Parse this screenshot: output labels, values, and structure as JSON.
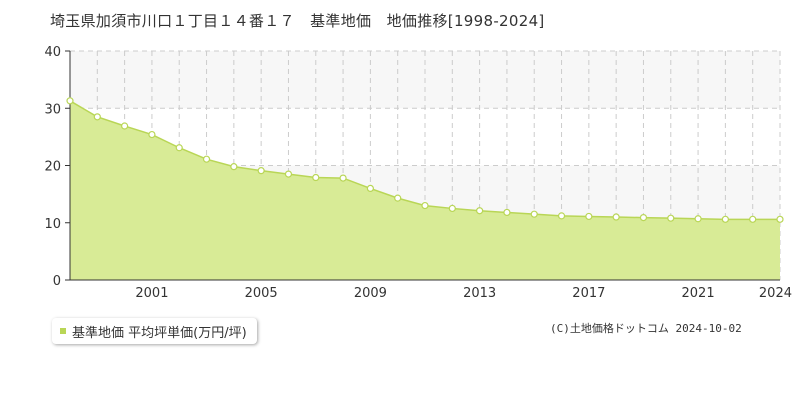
{
  "title": "埼玉県加須市川口１丁目１４番１７　基準地価　地価推移[1998-2024]",
  "legend": {
    "label": "基準地価 平均坪単価(万円/坪)",
    "icon": "square-marker-icon"
  },
  "copyright": "(C)土地価格ドットコム 2024-10-02",
  "colors": {
    "fill": "#d8eb96",
    "line": "#b9d656",
    "marker_fill": "#ffffff",
    "band": "#f7f7f7",
    "grid": "#cccccc",
    "axis": "#333333"
  },
  "chart_data": {
    "type": "area",
    "title": "埼玉県加須市川口１丁目１４番１７　基準地価　地価推移[1998-2024]",
    "xlabel": "",
    "ylabel": "",
    "xlim": [
      1998,
      2024
    ],
    "ylim": [
      0,
      40
    ],
    "yticks": [
      0,
      10,
      20,
      30,
      40
    ],
    "xticks": [
      2001,
      2005,
      2009,
      2013,
      2017,
      2021,
      2024
    ],
    "grid": true,
    "legend_position": "bottom-left",
    "series": [
      {
        "name": "基準地価 平均坪単価(万円/坪)",
        "x": [
          1998,
          1999,
          2000,
          2001,
          2002,
          2003,
          2004,
          2005,
          2006,
          2007,
          2008,
          2009,
          2010,
          2011,
          2012,
          2013,
          2014,
          2015,
          2016,
          2017,
          2018,
          2019,
          2020,
          2021,
          2022,
          2023,
          2024
        ],
        "values": [
          31.3,
          28.5,
          26.9,
          25.4,
          23.1,
          21.1,
          19.8,
          19.1,
          18.5,
          17.9,
          17.8,
          16.0,
          14.3,
          13.0,
          12.5,
          12.1,
          11.8,
          11.5,
          11.2,
          11.1,
          11.0,
          10.9,
          10.8,
          10.7,
          10.6,
          10.6,
          10.6
        ]
      }
    ]
  }
}
